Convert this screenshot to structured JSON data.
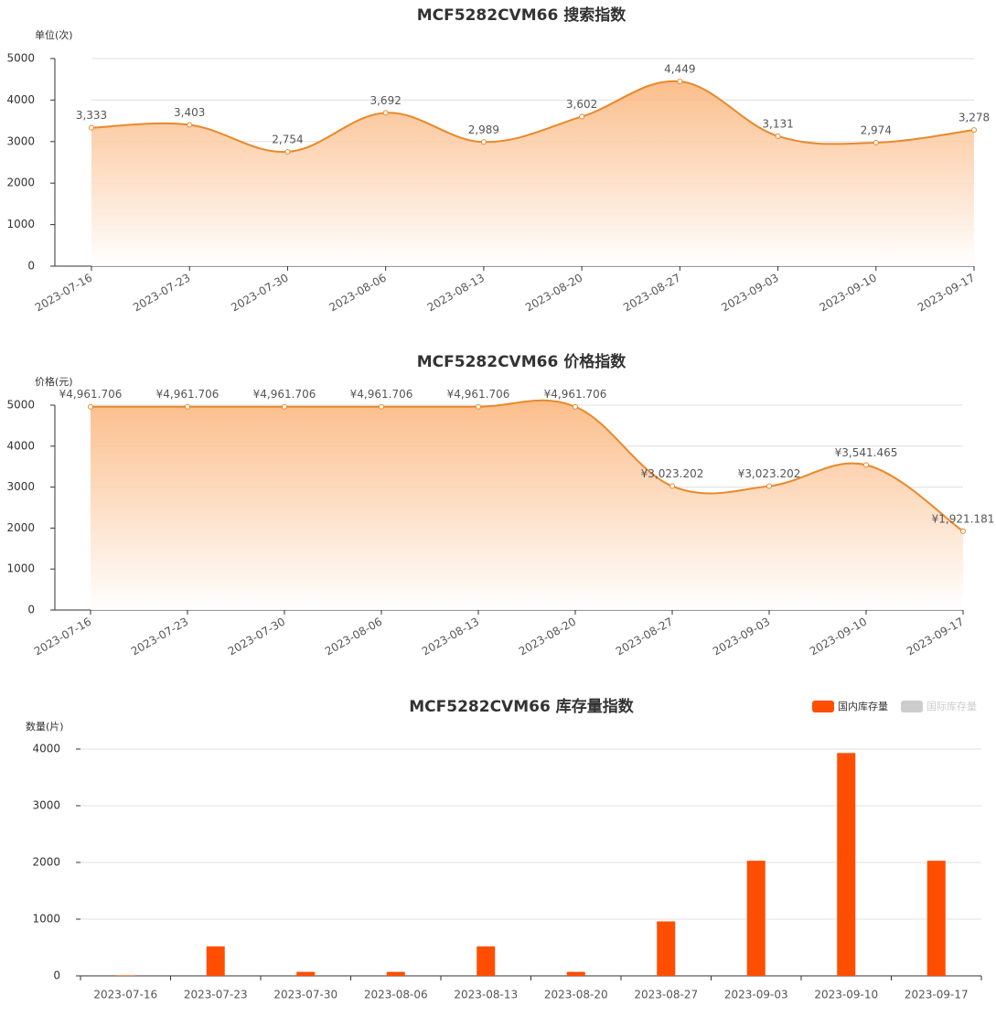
{
  "chart_data": [
    {
      "type": "line",
      "title": "MCF5282CVM66 搜索指数",
      "y_label": "单位(次)",
      "categories": [
        "2023-07-16",
        "2023-07-23",
        "2023-07-30",
        "2023-08-06",
        "2023-08-13",
        "2023-08-20",
        "2023-08-27",
        "2023-09-03",
        "2023-09-10",
        "2023-09-17"
      ],
      "values": [
        3333,
        3403,
        2754,
        3692,
        2989,
        3602,
        4449,
        3131,
        2974,
        3278
      ],
      "value_labels": [
        "3,333",
        "3,403",
        "2,754",
        "3,692",
        "2,989",
        "3,602",
        "4,449",
        "3,131",
        "2,974",
        "3,278"
      ],
      "color": "#e8892b",
      "ylim": [
        0,
        5000
      ],
      "yticks": [
        0,
        1000,
        2000,
        3000,
        4000,
        5000
      ],
      "grid": true
    },
    {
      "type": "line",
      "title": "MCF5282CVM66 价格指数",
      "y_label": "价格(元)",
      "categories": [
        "2023-07-16",
        "2023-07-23",
        "2023-07-30",
        "2023-08-06",
        "2023-08-13",
        "2023-08-20",
        "2023-08-27",
        "2023-09-03",
        "2023-09-10",
        "2023-09-17"
      ],
      "values": [
        4961.706,
        4961.706,
        4961.706,
        4961.706,
        4961.706,
        4961.706,
        3023.202,
        3023.202,
        3541.465,
        1921.181
      ],
      "value_labels": [
        "¥4,961.706",
        "¥4,961.706",
        "¥4,961.706",
        "¥4,961.706",
        "¥4,961.706",
        "¥4,961.706",
        "¥3,023.202",
        "¥3,023.202",
        "¥3,541.465",
        "¥1,921.181"
      ],
      "color": "#e8892b",
      "ylim": [
        0,
        5000
      ],
      "yticks": [
        0,
        1000,
        2000,
        3000,
        4000,
        5000
      ],
      "grid": true
    },
    {
      "type": "bar",
      "title": "MCF5282CVM66 库存量指数",
      "y_label": "数量(片)",
      "categories": [
        "2023-07-16",
        "2023-07-23",
        "2023-07-30",
        "2023-08-06",
        "2023-08-13",
        "2023-08-20",
        "2023-08-27",
        "2023-09-03",
        "2023-09-10",
        "2023-09-17"
      ],
      "series": [
        {
          "name": "国内库存量",
          "color": "#ff4e00",
          "values": [
            10,
            520,
            70,
            70,
            520,
            70,
            960,
            2030,
            3930,
            2030
          ]
        },
        {
          "name": "国际库存量",
          "color": "#cccccc",
          "values": [
            null,
            null,
            null,
            null,
            null,
            null,
            null,
            null,
            null,
            null
          ]
        }
      ],
      "ylim": [
        0,
        4000
      ],
      "yticks": [
        0,
        1000,
        2000,
        3000,
        4000
      ],
      "grid": true,
      "legend": "top-right"
    }
  ]
}
